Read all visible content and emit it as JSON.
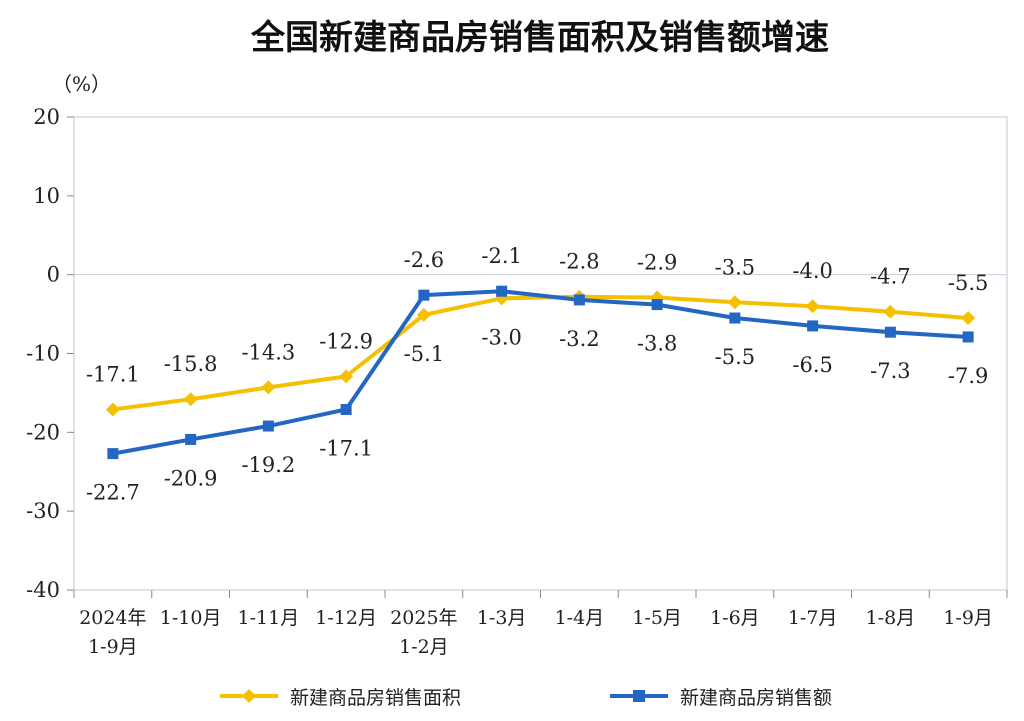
{
  "chart_data": {
    "type": "line",
    "title": "全国新建商品房销售面积及销售额增速",
    "unit": "（%）",
    "categories": [
      {
        "line1": "2024年",
        "line2": "1-9月"
      },
      {
        "line1": "1-10月",
        "line2": ""
      },
      {
        "line1": "1-11月",
        "line2": ""
      },
      {
        "line1": "1-12月",
        "line2": ""
      },
      {
        "line1": "2025年",
        "line2": "1-2月"
      },
      {
        "line1": "1-3月",
        "line2": ""
      },
      {
        "line1": "1-4月",
        "line2": ""
      },
      {
        "line1": "1-5月",
        "line2": ""
      },
      {
        "line1": "1-6月",
        "line2": ""
      },
      {
        "line1": "1-7月",
        "line2": ""
      },
      {
        "line1": "1-8月",
        "line2": ""
      },
      {
        "line1": "1-9月",
        "line2": ""
      }
    ],
    "ylim": [
      -40,
      20
    ],
    "yticks": [
      20,
      10,
      0,
      -10,
      -20,
      -30,
      -40
    ],
    "series": [
      {
        "name": "新建商品房销售面积",
        "color": "#F5C000",
        "marker": "diamond",
        "values": [
          -17.1,
          -15.8,
          -14.3,
          -12.9,
          -5.1,
          -3.0,
          -2.8,
          -2.9,
          -3.5,
          -4.0,
          -4.7,
          -5.5
        ],
        "labels": [
          "-17.1",
          "-15.8",
          "-14.3",
          "-12.9",
          "-5.1",
          "-3.0",
          "-2.8",
          "-2.9",
          "-3.5",
          "-4.0",
          "-4.7",
          "-5.5"
        ]
      },
      {
        "name": "新建商品房销售额",
        "color": "#2366C4",
        "marker": "square",
        "values": [
          -22.7,
          -20.9,
          -19.2,
          -17.1,
          -2.6,
          -2.1,
          -3.2,
          -3.8,
          -5.5,
          -6.5,
          -7.3,
          -7.9
        ],
        "labels": [
          "-22.7",
          "-20.9",
          "-19.2",
          "-17.1",
          "-2.6",
          "-2.1",
          "-3.2",
          "-3.8",
          "-5.5",
          "-6.5",
          "-7.3",
          "-7.9"
        ]
      }
    ],
    "legend_position": "bottom"
  }
}
